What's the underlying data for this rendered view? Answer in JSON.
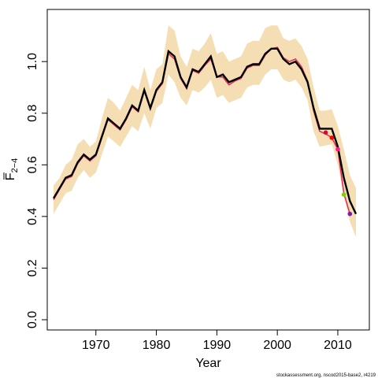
{
  "chart_data": {
    "type": "line",
    "title": "",
    "xlabel": "Year",
    "ylabel": "F",
    "ylabel_subscript": "2−4",
    "credit": "stockassessment.org, nscod2015-base2, r4219",
    "xlim": [
      1963,
      2013
    ],
    "ylim": [
      0.0,
      1.15
    ],
    "x_ticks": [
      1970,
      1980,
      1990,
      2000,
      2010
    ],
    "y_ticks": [
      0.0,
      0.2,
      0.4,
      0.6,
      0.8,
      1.0
    ],
    "y_tick_labels": [
      "0.0",
      "0.2",
      "0.4",
      "0.6",
      "0.8",
      "1.0"
    ],
    "x_tick_labels": [
      "1970",
      "1980",
      "1990",
      "2000",
      "2010"
    ],
    "grid": false,
    "colors": {
      "band": "#f5deb3",
      "main": "#000000",
      "retro": "#e8265a"
    },
    "band": {
      "x": [
        1963,
        1964,
        1965,
        1966,
        1967,
        1968,
        1969,
        1970,
        1971,
        1972,
        1973,
        1974,
        1975,
        1976,
        1977,
        1978,
        1979,
        1980,
        1981,
        1982,
        1983,
        1984,
        1985,
        1986,
        1987,
        1988,
        1989,
        1990,
        1991,
        1992,
        1993,
        1994,
        1995,
        1996,
        1997,
        1998,
        1999,
        2000,
        2001,
        2002,
        2003,
        2004,
        2005,
        2006,
        2007,
        2008,
        2009,
        2010,
        2011,
        2012,
        2013
      ],
      "lower": [
        0.41,
        0.45,
        0.49,
        0.5,
        0.55,
        0.58,
        0.55,
        0.57,
        0.64,
        0.71,
        0.69,
        0.67,
        0.71,
        0.75,
        0.73,
        0.8,
        0.74,
        0.82,
        0.84,
        0.95,
        0.92,
        0.86,
        0.83,
        0.89,
        0.88,
        0.9,
        0.93,
        0.86,
        0.87,
        0.84,
        0.85,
        0.86,
        0.9,
        0.91,
        0.91,
        0.95,
        0.97,
        0.97,
        0.93,
        0.92,
        0.93,
        0.9,
        0.85,
        0.73,
        0.67,
        0.675,
        0.68,
        0.6,
        0.48,
        0.38,
        0.32
      ],
      "upper": [
        0.52,
        0.55,
        0.6,
        0.62,
        0.68,
        0.7,
        0.67,
        0.69,
        0.78,
        0.86,
        0.84,
        0.81,
        0.86,
        0.91,
        0.89,
        0.98,
        0.89,
        0.97,
        0.99,
        1.14,
        1.12,
        1.02,
        0.98,
        1.05,
        1.04,
        1.07,
        1.11,
        1.03,
        1.04,
        1.0,
        1.01,
        1.02,
        1.07,
        1.08,
        1.08,
        1.13,
        1.14,
        1.14,
        1.09,
        1.08,
        1.09,
        1.06,
        1.01,
        0.9,
        0.81,
        0.81,
        0.815,
        0.75,
        0.66,
        0.56,
        0.51
      ]
    },
    "series": [
      {
        "x": [
          1963,
          1964,
          1965,
          1966,
          1967,
          1968,
          1969,
          1970,
          1971,
          1972,
          1973,
          1974,
          1975,
          1976,
          1977,
          1978,
          1979,
          1980,
          1981,
          1982,
          1983,
          1984,
          1985,
          1986,
          1987,
          1988,
          1989,
          1990,
          1991,
          1992,
          1993,
          1994,
          1995,
          1996,
          1997,
          1998,
          1999,
          2000,
          2001,
          2002,
          2003,
          2004,
          2005,
          2006,
          2007,
          2008,
          2009,
          2010,
          2011,
          2012,
          2013
        ],
        "values": [
          0.47,
          0.51,
          0.55,
          0.56,
          0.61,
          0.64,
          0.62,
          0.64,
          0.71,
          0.78,
          0.76,
          0.74,
          0.78,
          0.83,
          0.81,
          0.89,
          0.82,
          0.89,
          0.92,
          1.04,
          1.02,
          0.94,
          0.9,
          0.97,
          0.96,
          0.99,
          1.02,
          0.94,
          0.95,
          0.92,
          0.93,
          0.94,
          0.98,
          0.99,
          0.99,
          1.03,
          1.05,
          1.05,
          1.01,
          0.99,
          1.0,
          0.97,
          0.92,
          0.82,
          0.74,
          0.74,
          0.74,
          0.67,
          0.55,
          0.46,
          0.41
        ]
      },
      {
        "x": [
          1963,
          1964,
          1965,
          1966,
          1967,
          1968,
          1969,
          1970,
          1971,
          1972,
          1973,
          1974,
          1975,
          1976,
          1977,
          1978,
          1979,
          1980,
          1981,
          1982,
          1983,
          1984,
          1985,
          1986,
          1987,
          1988,
          1989,
          1990,
          1991,
          1992,
          1993,
          1994,
          1995,
          1996,
          1997,
          1998,
          1999,
          2000,
          2001,
          2002,
          2003,
          2004,
          2005,
          2006,
          2007,
          2008,
          2009,
          2010,
          2011,
          2012
        ],
        "values": [
          0.465,
          0.505,
          0.545,
          0.555,
          0.605,
          0.635,
          0.615,
          0.635,
          0.705,
          0.775,
          0.755,
          0.735,
          0.775,
          0.825,
          0.805,
          0.885,
          0.815,
          0.885,
          0.915,
          1.03,
          1.01,
          0.935,
          0.895,
          0.965,
          0.955,
          0.985,
          1.01,
          0.94,
          0.94,
          0.91,
          0.925,
          0.935,
          0.975,
          0.985,
          0.985,
          1.025,
          1.05,
          1.055,
          1.015,
          1.0,
          1.01,
          0.98,
          0.925,
          0.81,
          0.73,
          0.72,
          0.705,
          0.66,
          0.49,
          0.41
        ]
      }
    ],
    "retro_end_points": [
      {
        "x": 2008,
        "y": 0.725,
        "color": "#c8102e"
      },
      {
        "x": 2009,
        "y": 0.705,
        "color": "#ff0000"
      },
      {
        "x": 2010,
        "y": 0.66,
        "color": "#ff1493"
      },
      {
        "x": 2011,
        "y": 0.485,
        "color": "#7cd000"
      },
      {
        "x": 2012,
        "y": 0.41,
        "color": "#7a1fa2"
      }
    ]
  }
}
